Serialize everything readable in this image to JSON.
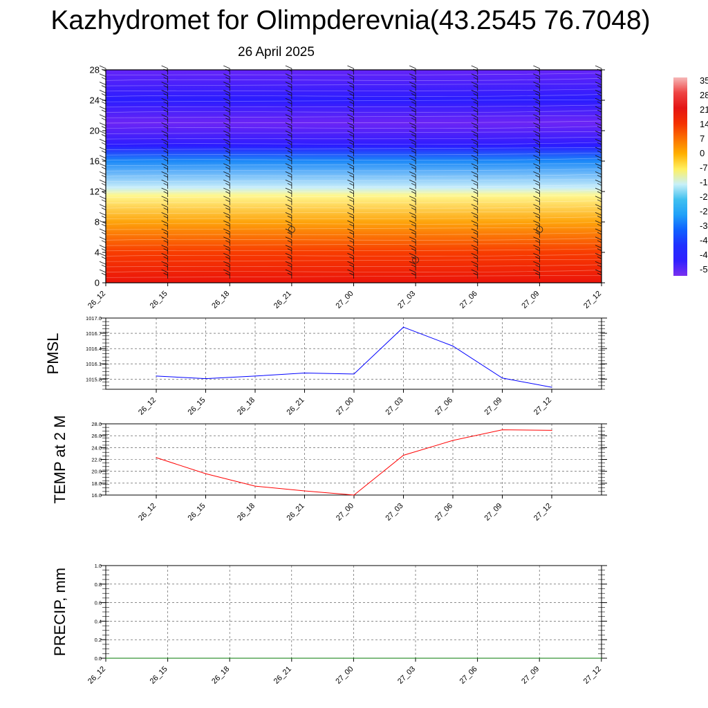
{
  "title": "Kazhydromet for Olimpderevnia(43.2545 76.7048)",
  "subtitle": "26 April 2025",
  "time_labels": [
    "26_12",
    "26_15",
    "26_18",
    "26_21",
    "27_00",
    "27_03",
    "27_06",
    "27_09",
    "27_12"
  ],
  "chart_data": [
    {
      "type": "heatmap",
      "panel": "vertical-cross-section",
      "x": [
        "26_12",
        "26_15",
        "26_18",
        "26_21",
        "27_00",
        "27_03",
        "27_06",
        "27_09",
        "27_12"
      ],
      "ylim": [
        0,
        28
      ],
      "yticks": [
        "0",
        "4",
        "8",
        "12",
        "16",
        "20",
        "24",
        "28"
      ],
      "temperature_profile": [
        {
          "height": 0,
          "value": 21
        },
        {
          "height": 4,
          "value": 14
        },
        {
          "height": 8,
          "value": 3
        },
        {
          "height": 11.5,
          "value": -7
        },
        {
          "height": 12.5,
          "value": -14
        },
        {
          "height": 16,
          "value": -28
        },
        {
          "height": 18,
          "value": -45
        },
        {
          "height": 21,
          "value": -53
        },
        {
          "height": 24,
          "value": -45
        },
        {
          "height": 28,
          "value": -52
        }
      ],
      "colorbar_labels": [
        "35",
        "28",
        "21",
        "14",
        "7",
        "0",
        "-7",
        "-1",
        "-2",
        "-2",
        "-3",
        "-4",
        "-4",
        "-5"
      ],
      "colorbar_colors": [
        "#f6b8b8",
        "#ee4444",
        "#e41414",
        "#f43000",
        "#fb7000",
        "#ffb000",
        "#fff060",
        "#c8f0f8",
        "#40c0f0",
        "#20a0f8",
        "#1060ff",
        "#2030ff",
        "#3020ff",
        "#7a30f0"
      ],
      "grid": false
    },
    {
      "type": "line",
      "panel": "pmsl",
      "ylabel": "PMSL",
      "x": [
        "26_12",
        "26_15",
        "26_18",
        "26_21",
        "27_00",
        "27_03",
        "27_06",
        "27_09",
        "27_12"
      ],
      "values": [
        1015.86,
        1015.81,
        1015.86,
        1015.92,
        1015.9,
        1016.82,
        1016.45,
        1015.82,
        1015.64
      ],
      "ylim": [
        1015.6,
        1017.0
      ],
      "yticks": [
        "1015.8",
        "1016.1",
        "1016.4",
        "1016.7",
        "1017.0"
      ],
      "ytick_values": [
        1015.8,
        1016.1,
        1016.4,
        1016.7,
        1017.0
      ],
      "color": "#0000ff",
      "grid": true
    },
    {
      "type": "line",
      "panel": "temp2m",
      "ylabel": "TEMP at 2 M",
      "x": [
        "26_12",
        "26_15",
        "26_18",
        "26_21",
        "27_00",
        "27_03",
        "27_06",
        "27_09",
        "27_12"
      ],
      "values": [
        22.3,
        19.6,
        17.5,
        16.7,
        16.0,
        22.7,
        25.2,
        27.0,
        26.9
      ],
      "ylim": [
        16.0,
        28.0
      ],
      "yticks": [
        "16.0",
        "18.0",
        "20.0",
        "22.0",
        "24.0",
        "26.0",
        "28.0"
      ],
      "ytick_values": [
        16,
        18,
        20,
        22,
        24,
        26,
        28
      ],
      "color": "#ff0000",
      "grid": true
    },
    {
      "type": "line",
      "panel": "precip",
      "ylabel": "PRECIP, mm",
      "x": [
        "26_12",
        "26_15",
        "26_18",
        "26_21",
        "27_00",
        "27_03",
        "27_06",
        "27_09",
        "27_12"
      ],
      "values": [
        0,
        0,
        0,
        0,
        0,
        0,
        0,
        0,
        0
      ],
      "ylim": [
        0.0,
        1.0
      ],
      "yticks": [
        "0.0",
        "0.2",
        "0.4",
        "0.6",
        "0.8",
        "1.0"
      ],
      "ytick_values": [
        0,
        0.2,
        0.4,
        0.6,
        0.8,
        1.0
      ],
      "color": "#007700",
      "grid": true
    }
  ]
}
